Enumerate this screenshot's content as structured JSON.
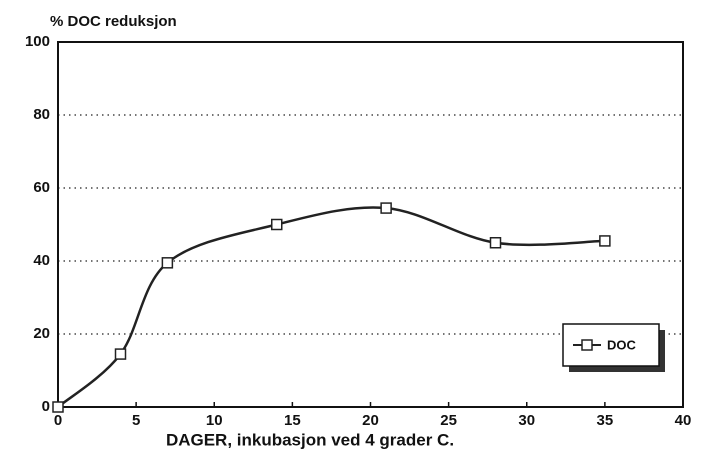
{
  "chart_data": {
    "type": "scatter-line",
    "title": "% DOC reduksjon",
    "x_label": "DAGER, inkubasjon ved 4 grader C.",
    "series": [
      {
        "name": "DOC",
        "color": "#222222",
        "x": [
          0,
          4,
          7,
          14,
          21,
          28,
          35
        ],
        "values": [
          0,
          14.5,
          39.5,
          50,
          54.5,
          45,
          45.5
        ]
      }
    ],
    "xlim": [
      0,
      40
    ],
    "xticks": [
      0,
      5,
      10,
      15,
      20,
      25,
      30,
      35,
      40
    ],
    "ylim": [
      0,
      100
    ],
    "yticks": [
      0,
      20,
      40,
      60,
      80,
      100
    ],
    "grid": true,
    "legend": "lower right"
  }
}
